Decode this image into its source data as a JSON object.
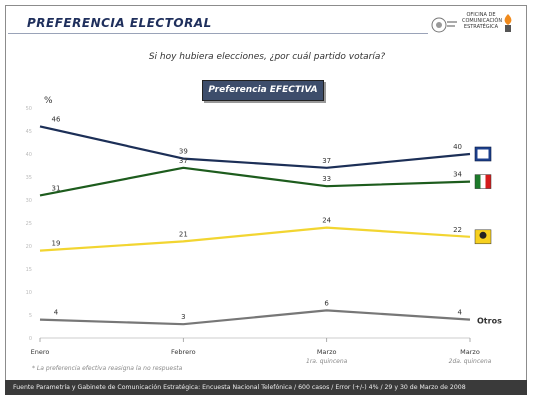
{
  "header": {
    "title": "PREFERENCIA ELECTORAL",
    "logo2_text": "OFICINA DE COMUNICACIÓN ESTRATÉGICA"
  },
  "question": "Si hoy hubiera elecciones, ¿por cuál partido votaría?",
  "badge": "Preferencia EFECTIVA",
  "note": "* La preferencia efectiva reasigna la no respuesta",
  "footer": "Fuente Parametría y Gabinete de Comunicación Estratégica: Encuesta Nacional Telefónica / 600 casos / Error (+/-) 4% / 29 y 30 de Marzo de 2008",
  "chart_data": {
    "type": "line",
    "ylabel": "%",
    "ylim": [
      0,
      50
    ],
    "yticks": [
      0,
      5,
      10,
      15,
      20,
      25,
      30,
      35,
      40,
      45,
      50
    ],
    "categories": [
      {
        "label": "Enero",
        "sub": ""
      },
      {
        "label": "Febrero",
        "sub": ""
      },
      {
        "label": "Marzo",
        "sub": "1ra. quincena"
      },
      {
        "label": "Marzo",
        "sub": "2da. quincena"
      }
    ],
    "series": [
      {
        "name": "PAN",
        "color": "#1c2f57",
        "values": [
          46,
          39,
          37,
          40
        ]
      },
      {
        "name": "PRI",
        "color": "#1d5c1d",
        "values": [
          31,
          37,
          33,
          34
        ]
      },
      {
        "name": "PRD",
        "color": "#f2d531",
        "values": [
          19,
          21,
          24,
          22
        ]
      },
      {
        "name": "Otros",
        "color": "#777777",
        "values": [
          4,
          3,
          6,
          4
        ]
      }
    ],
    "end_labels": {
      "Otros": "Otros"
    }
  }
}
